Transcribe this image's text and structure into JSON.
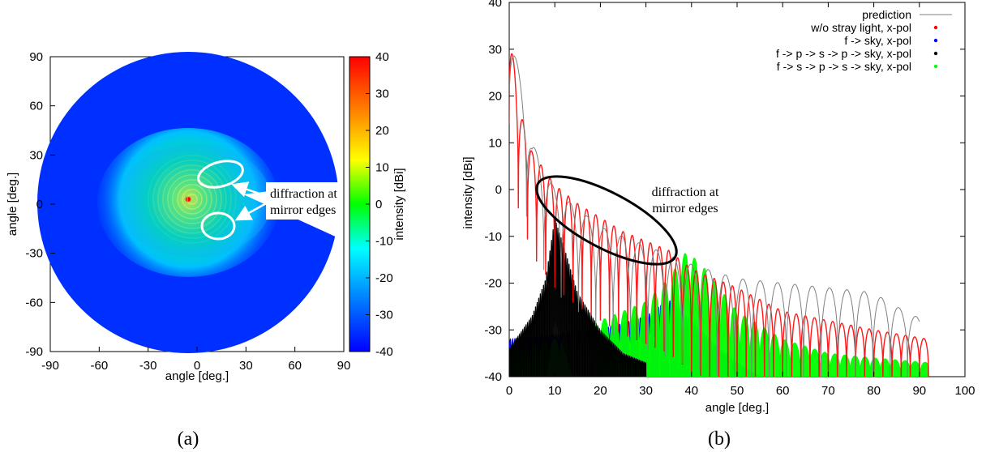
{
  "chart_data": [
    {
      "type": "heatmap",
      "panel_label": "(a)",
      "xlabel": "angle [deg.]",
      "ylabel": "angle [deg.]",
      "xlim": [
        -90,
        90
      ],
      "ylim": [
        -90,
        90
      ],
      "xticks": [
        "-90",
        "-60",
        "-30",
        "0",
        "30",
        "60",
        "90"
      ],
      "yticks": [
        "90",
        "60",
        "30",
        "0",
        "-30",
        "-60",
        "-90"
      ],
      "colorbar": {
        "label": "intensity [dBi]",
        "range": [
          -40,
          40
        ],
        "ticks": [
          "40",
          "30",
          "20",
          "10",
          "0",
          "-10",
          "-20",
          "-30",
          "-40"
        ],
        "colors": [
          "#0000ff",
          "#0080ff",
          "#00ffff",
          "#00ff00",
          "#ffff00",
          "#ff8000",
          "#ff0000"
        ]
      },
      "disk_radius_deg": 89,
      "peak": {
        "x": -3,
        "y": 3,
        "value": 38
      },
      "annotation": {
        "line1": "diffraction at",
        "line2": "mirror edges"
      }
    },
    {
      "type": "line",
      "panel_label": "(b)",
      "xlabel": "angle [deg.]",
      "ylabel": "intensity [dBi]",
      "xlim": [
        0,
        100
      ],
      "ylim": [
        -40,
        40
      ],
      "xticks": [
        "0",
        "10",
        "20",
        "30",
        "40",
        "50",
        "60",
        "70",
        "80",
        "90",
        "100"
      ],
      "yticks": [
        "40",
        "30",
        "20",
        "10",
        "0",
        "-10",
        "-20",
        "-30",
        "-40"
      ],
      "legend_position": "top-right",
      "series": [
        {
          "name": "prediction",
          "color": "#808080",
          "envelope": [
            [
              0,
              36
            ],
            [
              5,
              10
            ],
            [
              10,
              0
            ],
            [
              20,
              -8
            ],
            [
              30,
              -12
            ],
            [
              40,
              -16
            ],
            [
              50,
              -19
            ],
            [
              60,
              -20
            ],
            [
              70,
              -21
            ],
            [
              80,
              -22
            ],
            [
              83,
              -24
            ],
            [
              90,
              -27.5
            ]
          ]
        },
        {
          "name": "w/o stray light, x-pol",
          "color": "#ff0000",
          "envelope": [
            [
              0,
              36
            ],
            [
              2,
              18
            ],
            [
              5,
              8
            ],
            [
              10,
              1
            ],
            [
              15,
              -3
            ],
            [
              20,
              -6
            ],
            [
              25,
              -9
            ],
            [
              30,
              -11
            ],
            [
              35,
              -13
            ],
            [
              40,
              -17
            ],
            [
              50,
              -21
            ],
            [
              60,
              -26
            ],
            [
              70,
              -28
            ],
            [
              80,
              -30
            ],
            [
              92,
              -32
            ]
          ]
        },
        {
          "name": "f -> sky, x-pol",
          "color": "#0000ff",
          "envelope": [
            [
              0,
              -32
            ],
            [
              10,
              -31
            ],
            [
              20,
              -30
            ],
            [
              30,
              -27
            ],
            [
              35,
              -23.5
            ],
            [
              40,
              -28
            ],
            [
              45,
              -33
            ],
            [
              50,
              -37
            ],
            [
              55,
              -40
            ]
          ]
        },
        {
          "name": "f -> p -> s -> p -> sky, x-pol",
          "color": "#000000",
          "envelope": [
            [
              0,
              -34
            ],
            [
              5,
              -27
            ],
            [
              8,
              -19
            ],
            [
              10,
              -6
            ],
            [
              12,
              -12
            ],
            [
              15,
              -22
            ],
            [
              20,
              -30
            ],
            [
              25,
              -35
            ],
            [
              30,
              -37
            ]
          ]
        },
        {
          "name": "f -> s -> p -> s -> sky, x-pol",
          "color": "#00ff00",
          "envelope": [
            [
              0,
              -34
            ],
            [
              5,
              -33
            ],
            [
              10,
              -32
            ],
            [
              20,
              -28
            ],
            [
              30,
              -24
            ],
            [
              35,
              -19
            ],
            [
              39,
              -13
            ],
            [
              43,
              -17
            ],
            [
              50,
              -26
            ],
            [
              60,
              -32
            ],
            [
              70,
              -35
            ],
            [
              80,
              -36
            ],
            [
              92,
              -37
            ]
          ]
        }
      ],
      "annotation": {
        "line1": "diffraction at",
        "line2": "mirror edges"
      }
    }
  ],
  "colors": {
    "red": "#ff0000",
    "blue": "#0000ff",
    "green": "#00ff00",
    "black": "#000000",
    "gray": "#808080"
  }
}
